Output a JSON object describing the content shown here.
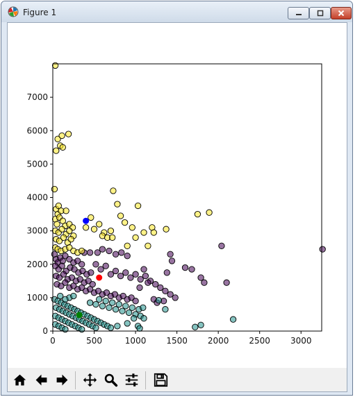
{
  "window": {
    "title": "Figure 1",
    "controls": {
      "minimize": "minimize",
      "maximize": "maximize",
      "close": "close"
    }
  },
  "icons": {
    "app": "matplotlib-icon",
    "home": "home-icon",
    "back": "arrow-left-icon",
    "forward": "arrow-right-icon",
    "pan": "pan-move-icon",
    "zoom": "magnifier-icon",
    "configure": "sliders-icon",
    "save": "floppy-disk-icon"
  },
  "chart_data": {
    "type": "scatter",
    "title": "",
    "xlabel": "",
    "ylabel": "",
    "xlim": [
      0,
      3250
    ],
    "ylim": [
      0,
      8000
    ],
    "xticks": [
      0,
      500,
      1000,
      1500,
      2000,
      2500,
      3000
    ],
    "yticks": [
      0,
      1000,
      2000,
      3000,
      4000,
      5000,
      6000,
      7000
    ],
    "grid": false,
    "legend": "none",
    "series": [
      {
        "cluster": 0,
        "color": "#440154",
        "points": [
          [
            20,
            2300
          ],
          [
            40,
            2150
          ],
          [
            60,
            2050
          ],
          [
            90,
            2200
          ],
          [
            120,
            2100
          ],
          [
            150,
            2250
          ],
          [
            200,
            2150
          ],
          [
            250,
            2050
          ],
          [
            300,
            2100
          ],
          [
            350,
            2000
          ],
          [
            30,
            1950
          ],
          [
            70,
            1850
          ],
          [
            110,
            1950
          ],
          [
            160,
            1800
          ],
          [
            210,
            1900
          ],
          [
            260,
            1850
          ],
          [
            310,
            1750
          ],
          [
            360,
            1800
          ],
          [
            410,
            1700
          ],
          [
            460,
            1750
          ],
          [
            40,
            1650
          ],
          [
            80,
            1600
          ],
          [
            130,
            1700
          ],
          [
            180,
            1550
          ],
          [
            230,
            1600
          ],
          [
            280,
            1500
          ],
          [
            330,
            1550
          ],
          [
            380,
            1450
          ],
          [
            430,
            1500
          ],
          [
            480,
            1400
          ],
          [
            50,
            1400
          ],
          [
            100,
            1350
          ],
          [
            150,
            1450
          ],
          [
            200,
            1300
          ],
          [
            250,
            1350
          ],
          [
            300,
            1250
          ],
          [
            350,
            1300
          ],
          [
            400,
            1200
          ],
          [
            450,
            1250
          ],
          [
            500,
            1150
          ],
          [
            550,
            1200
          ],
          [
            600,
            1100
          ],
          [
            650,
            1150
          ],
          [
            700,
            1050
          ],
          [
            750,
            1100
          ],
          [
            800,
            1000
          ],
          [
            850,
            1050
          ],
          [
            900,
            950
          ],
          [
            950,
            1000
          ],
          [
            1000,
            900
          ],
          [
            520,
            2000
          ],
          [
            580,
            1850
          ],
          [
            640,
            1950
          ],
          [
            700,
            1700
          ],
          [
            760,
            1800
          ],
          [
            820,
            1650
          ],
          [
            880,
            1750
          ],
          [
            940,
            1600
          ],
          [
            1000,
            1700
          ],
          [
            1060,
            1550
          ],
          [
            1120,
            1650
          ],
          [
            1180,
            1500
          ],
          [
            1240,
            1400
          ],
          [
            1300,
            1300
          ],
          [
            1360,
            1200
          ],
          [
            1420,
            1100
          ],
          [
            1480,
            1000
          ],
          [
            1220,
            950
          ],
          [
            1260,
            850
          ],
          [
            1340,
            900
          ],
          [
            600,
            2450
          ],
          [
            680,
            2400
          ],
          [
            760,
            2300
          ],
          [
            830,
            2350
          ],
          [
            900,
            2250
          ],
          [
            540,
            2350
          ],
          [
            450,
            2350
          ],
          [
            1420,
            2300
          ],
          [
            1440,
            2100
          ],
          [
            1380,
            1750
          ],
          [
            1600,
            1900
          ],
          [
            1680,
            1850
          ],
          [
            1790,
            1600
          ],
          [
            2040,
            2550
          ],
          [
            2100,
            1450
          ],
          [
            1830,
            1450
          ],
          [
            3260,
            2450
          ],
          [
            380,
            2350
          ],
          [
            1100,
            1850
          ],
          [
            1150,
            1450
          ],
          [
            1050,
            1300
          ]
        ]
      },
      {
        "cluster": 1,
        "color": "#21918c",
        "points": [
          [
            20,
            950
          ],
          [
            60,
            900
          ],
          [
            100,
            850
          ],
          [
            140,
            800
          ],
          [
            180,
            750
          ],
          [
            220,
            700
          ],
          [
            260,
            650
          ],
          [
            300,
            600
          ],
          [
            340,
            550
          ],
          [
            380,
            500
          ],
          [
            420,
            450
          ],
          [
            460,
            400
          ],
          [
            500,
            350
          ],
          [
            540,
            300
          ],
          [
            580,
            250
          ],
          [
            620,
            200
          ],
          [
            660,
            150
          ],
          [
            700,
            100
          ],
          [
            40,
            700
          ],
          [
            80,
            650
          ],
          [
            120,
            600
          ],
          [
            160,
            550
          ],
          [
            200,
            500
          ],
          [
            240,
            450
          ],
          [
            280,
            400
          ],
          [
            320,
            350
          ],
          [
            360,
            300
          ],
          [
            400,
            250
          ],
          [
            440,
            200
          ],
          [
            480,
            150
          ],
          [
            520,
            100
          ],
          [
            30,
            450
          ],
          [
            70,
            400
          ],
          [
            110,
            350
          ],
          [
            150,
            300
          ],
          [
            190,
            250
          ],
          [
            230,
            200
          ],
          [
            270,
            150
          ],
          [
            310,
            100
          ],
          [
            350,
            50
          ],
          [
            30,
            200
          ],
          [
            70,
            150
          ],
          [
            110,
            100
          ],
          [
            150,
            50
          ],
          [
            450,
            850
          ],
          [
            520,
            800
          ],
          [
            600,
            750
          ],
          [
            680,
            700
          ],
          [
            760,
            650
          ],
          [
            840,
            600
          ],
          [
            920,
            550
          ],
          [
            1000,
            500
          ],
          [
            1060,
            450
          ],
          [
            1100,
            380
          ],
          [
            560,
            950
          ],
          [
            640,
            900
          ],
          [
            720,
            850
          ],
          [
            800,
            800
          ],
          [
            880,
            750
          ],
          [
            960,
            700
          ],
          [
            1040,
            650
          ],
          [
            1090,
            700
          ],
          [
            980,
            380
          ],
          [
            900,
            230
          ],
          [
            780,
            150
          ],
          [
            1030,
            150
          ],
          [
            1050,
            80
          ],
          [
            1360,
            650
          ],
          [
            1280,
            920
          ],
          [
            1720,
            120
          ],
          [
            1790,
            180
          ],
          [
            2180,
            350
          ],
          [
            200,
            1000
          ],
          [
            250,
            1050
          ],
          [
            90,
            1050
          ],
          [
            150,
            950
          ]
        ]
      },
      {
        "cluster": 2,
        "color": "#fde725",
        "points": [
          [
            30,
            7950
          ],
          [
            40,
            5400
          ],
          [
            60,
            5750
          ],
          [
            90,
            5550
          ],
          [
            120,
            5500
          ],
          [
            110,
            5850
          ],
          [
            190,
            5900
          ],
          [
            20,
            4250
          ],
          [
            40,
            3650
          ],
          [
            70,
            3750
          ],
          [
            60,
            3500
          ],
          [
            100,
            3600
          ],
          [
            160,
            3600
          ],
          [
            30,
            3350
          ],
          [
            50,
            3200
          ],
          [
            80,
            3400
          ],
          [
            120,
            3300
          ],
          [
            150,
            3150
          ],
          [
            200,
            3200
          ],
          [
            240,
            3100
          ],
          [
            30,
            3000
          ],
          [
            70,
            2950
          ],
          [
            110,
            3050
          ],
          [
            160,
            2900
          ],
          [
            200,
            3000
          ],
          [
            250,
            2850
          ],
          [
            40,
            2750
          ],
          [
            80,
            2700
          ],
          [
            130,
            2800
          ],
          [
            180,
            2650
          ],
          [
            220,
            2750
          ],
          [
            30,
            2500
          ],
          [
            60,
            2450
          ],
          [
            100,
            2400
          ],
          [
            150,
            2450
          ],
          [
            200,
            2500
          ],
          [
            250,
            2400
          ],
          [
            300,
            2350
          ],
          [
            350,
            2400
          ],
          [
            400,
            3100
          ],
          [
            460,
            3400
          ],
          [
            500,
            3050
          ],
          [
            560,
            3200
          ],
          [
            620,
            2950
          ],
          [
            600,
            2850
          ],
          [
            660,
            2800
          ],
          [
            700,
            3000
          ],
          [
            720,
            2800
          ],
          [
            730,
            4200
          ],
          [
            780,
            3800
          ],
          [
            820,
            3450
          ],
          [
            870,
            3250
          ],
          [
            900,
            2550
          ],
          [
            960,
            3100
          ],
          [
            1000,
            2800
          ],
          [
            1030,
            3750
          ],
          [
            1100,
            2950
          ],
          [
            1150,
            2550
          ],
          [
            1200,
            3100
          ],
          [
            1220,
            2950
          ],
          [
            1370,
            3050
          ],
          [
            1750,
            3500
          ],
          [
            1890,
            3550
          ]
        ]
      }
    ],
    "centroids": [
      {
        "x": 560,
        "y": 1600,
        "color": "#ff0000"
      },
      {
        "x": 400,
        "y": 3300,
        "color": "#0000ff"
      },
      {
        "x": 320,
        "y": 480,
        "color": "#008000"
      }
    ]
  }
}
